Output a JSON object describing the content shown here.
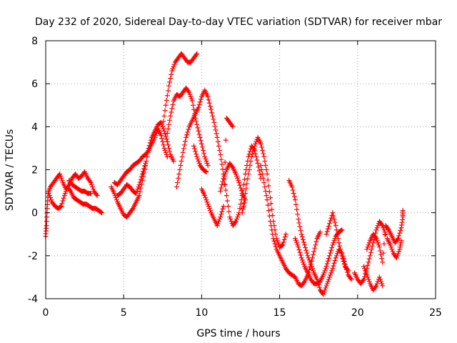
{
  "chart_data": {
    "type": "scatter",
    "title": "Day 232 of 2020, Sidereal Day-to-day VTEC variation (SDTVAR) for receiver mbar",
    "xlabel": "GPS time / hours",
    "ylabel": "SDTVAR / TECUs",
    "xlim": [
      0,
      25
    ],
    "ylim": [
      -4,
      8
    ],
    "xticks": [
      0,
      5,
      10,
      15,
      20,
      25
    ],
    "yticks": [
      -4,
      -2,
      0,
      2,
      4,
      6,
      8
    ],
    "grid": true,
    "marker": "+",
    "series": [
      {
        "name": "SDTVAR",
        "color": "#ff0000",
        "points": [
          [
            0.0,
            -1.1
          ],
          [
            0.05,
            -0.6
          ],
          [
            0.1,
            0.2
          ],
          [
            0.15,
            0.9
          ],
          [
            0.3,
            1.2
          ],
          [
            0.5,
            1.4
          ],
          [
            0.7,
            1.6
          ],
          [
            0.9,
            1.8
          ],
          [
            1.1,
            1.4
          ],
          [
            1.3,
            1.1
          ],
          [
            1.5,
            1.3
          ],
          [
            1.7,
            1.6
          ],
          [
            1.9,
            1.8
          ],
          [
            2.1,
            1.6
          ],
          [
            2.3,
            1.7
          ],
          [
            2.5,
            1.9
          ],
          [
            2.7,
            1.6
          ],
          [
            2.9,
            1.4
          ],
          [
            3.1,
            1.0
          ],
          [
            3.3,
            0.8
          ],
          [
            0.2,
            0.9
          ],
          [
            0.4,
            0.5
          ],
          [
            0.6,
            0.3
          ],
          [
            0.8,
            0.2
          ],
          [
            1.0,
            0.3
          ],
          [
            1.2,
            0.8
          ],
          [
            1.4,
            1.2
          ],
          [
            1.6,
            1.0
          ],
          [
            1.8,
            0.7
          ],
          [
            2.0,
            0.6
          ],
          [
            2.2,
            0.5
          ],
          [
            2.4,
            0.4
          ],
          [
            2.6,
            0.4
          ],
          [
            2.8,
            0.3
          ],
          [
            3.0,
            0.2
          ],
          [
            3.2,
            0.2
          ],
          [
            3.4,
            0.1
          ],
          [
            3.6,
            0.0
          ],
          [
            1.5,
            1.5
          ],
          [
            1.7,
            1.3
          ],
          [
            1.9,
            1.2
          ],
          [
            2.1,
            1.1
          ],
          [
            2.3,
            1.0
          ],
          [
            2.5,
            1.0
          ],
          [
            2.7,
            0.9
          ],
          [
            2.9,
            0.9
          ],
          [
            4.2,
            1.2
          ],
          [
            4.4,
            0.9
          ],
          [
            4.6,
            0.5
          ],
          [
            4.8,
            0.2
          ],
          [
            5.0,
            -0.1
          ],
          [
            5.2,
            -0.2
          ],
          [
            5.4,
            0.0
          ],
          [
            5.6,
            0.2
          ],
          [
            5.8,
            0.5
          ],
          [
            6.0,
            0.8
          ],
          [
            6.2,
            1.5
          ],
          [
            6.4,
            2.2
          ],
          [
            6.6,
            3.0
          ],
          [
            6.8,
            3.5
          ],
          [
            7.0,
            3.8
          ],
          [
            7.2,
            4.1
          ],
          [
            7.4,
            4.2
          ],
          [
            7.6,
            3.8
          ],
          [
            7.8,
            3.3
          ],
          [
            8.0,
            2.7
          ],
          [
            8.2,
            2.4
          ],
          [
            4.4,
            1.4
          ],
          [
            4.6,
            1.3
          ],
          [
            4.8,
            1.5
          ],
          [
            5.0,
            1.7
          ],
          [
            5.2,
            1.9
          ],
          [
            5.4,
            2.0
          ],
          [
            5.6,
            2.2
          ],
          [
            5.8,
            2.3
          ],
          [
            6.0,
            2.4
          ],
          [
            6.2,
            2.6
          ],
          [
            6.4,
            2.7
          ],
          [
            6.6,
            2.9
          ],
          [
            6.8,
            3.2
          ],
          [
            7.0,
            3.5
          ],
          [
            7.2,
            3.9
          ],
          [
            7.4,
            3.6
          ],
          [
            7.6,
            3.0
          ],
          [
            7.8,
            2.6
          ],
          [
            4.6,
            0.8
          ],
          [
            4.8,
            0.9
          ],
          [
            5.0,
            1.1
          ],
          [
            5.2,
            1.3
          ],
          [
            5.4,
            1.2
          ],
          [
            5.6,
            1.0
          ],
          [
            5.8,
            0.9
          ],
          [
            6.0,
            1.3
          ],
          [
            6.2,
            1.8
          ],
          [
            6.4,
            2.3
          ],
          [
            7.5,
            4.0
          ],
          [
            7.7,
            5.0
          ],
          [
            7.9,
            5.9
          ],
          [
            8.1,
            6.6
          ],
          [
            8.3,
            7.0
          ],
          [
            8.5,
            7.2
          ],
          [
            8.7,
            7.4
          ],
          [
            8.9,
            7.2
          ],
          [
            9.1,
            7.0
          ],
          [
            9.3,
            7.0
          ],
          [
            9.5,
            7.2
          ],
          [
            9.7,
            7.4
          ],
          [
            7.8,
            3.7
          ],
          [
            8.0,
            4.5
          ],
          [
            8.2,
            5.2
          ],
          [
            8.4,
            5.5
          ],
          [
            8.6,
            5.4
          ],
          [
            8.8,
            5.6
          ],
          [
            9.0,
            5.8
          ],
          [
            9.2,
            5.6
          ],
          [
            9.4,
            5.2
          ],
          [
            9.6,
            4.4
          ],
          [
            9.8,
            3.8
          ],
          [
            10.0,
            3.2
          ],
          [
            10.2,
            2.6
          ],
          [
            10.4,
            2.2
          ],
          [
            8.4,
            1.2
          ],
          [
            8.6,
            2.0
          ],
          [
            8.8,
            2.8
          ],
          [
            9.0,
            3.5
          ],
          [
            9.2,
            4.0
          ],
          [
            9.4,
            4.3
          ],
          [
            9.6,
            4.6
          ],
          [
            9.8,
            4.9
          ],
          [
            10.0,
            5.4
          ],
          [
            10.2,
            5.7
          ],
          [
            10.4,
            5.4
          ],
          [
            10.6,
            4.8
          ],
          [
            10.8,
            4.2
          ],
          [
            11.0,
            3.5
          ],
          [
            11.2,
            2.7
          ],
          [
            11.4,
            1.8
          ],
          [
            11.6,
            0.8
          ],
          [
            11.8,
            -0.2
          ],
          [
            12.0,
            -0.6
          ],
          [
            12.2,
            -0.4
          ],
          [
            12.4,
            0.0
          ],
          [
            12.6,
            0.8
          ],
          [
            12.8,
            1.8
          ],
          [
            13.0,
            2.6
          ],
          [
            13.2,
            3.1
          ],
          [
            13.4,
            2.9
          ],
          [
            13.6,
            2.3
          ],
          [
            13.8,
            1.6
          ],
          [
            9.5,
            3.1
          ],
          [
            9.7,
            2.6
          ],
          [
            9.9,
            2.2
          ],
          [
            10.1,
            2.0
          ],
          [
            10.3,
            1.9
          ],
          [
            10.0,
            1.1
          ],
          [
            10.2,
            0.8
          ],
          [
            10.4,
            0.4
          ],
          [
            10.6,
            0.0
          ],
          [
            10.8,
            -0.3
          ],
          [
            11.0,
            -0.6
          ],
          [
            11.2,
            -0.2
          ],
          [
            11.4,
            0.3
          ],
          [
            11.6,
            4.4
          ],
          [
            11.8,
            4.2
          ],
          [
            12.0,
            4.0
          ],
          [
            11.2,
            1.0
          ],
          [
            11.4,
            1.6
          ],
          [
            11.6,
            2.0
          ],
          [
            11.8,
            2.3
          ],
          [
            12.0,
            2.1
          ],
          [
            12.2,
            1.8
          ],
          [
            12.4,
            1.4
          ],
          [
            12.6,
            0.9
          ],
          [
            12.8,
            0.6
          ],
          [
            12.6,
            0.0
          ],
          [
            12.8,
            0.9
          ],
          [
            13.0,
            1.8
          ],
          [
            13.2,
            2.6
          ],
          [
            13.4,
            3.1
          ],
          [
            13.6,
            3.5
          ],
          [
            13.8,
            3.2
          ],
          [
            14.0,
            2.6
          ],
          [
            14.2,
            1.8
          ],
          [
            14.4,
            0.7
          ],
          [
            14.6,
            -0.4
          ],
          [
            14.8,
            -1.2
          ],
          [
            15.0,
            -1.6
          ],
          [
            15.2,
            -1.5
          ],
          [
            15.4,
            -1.0
          ],
          [
            13.8,
            2.2
          ],
          [
            14.0,
            1.4
          ],
          [
            14.2,
            0.6
          ],
          [
            14.4,
            -0.4
          ],
          [
            14.6,
            -1.2
          ],
          [
            14.8,
            -1.7
          ],
          [
            15.0,
            -2.0
          ],
          [
            15.2,
            -2.3
          ],
          [
            15.4,
            -2.6
          ],
          [
            15.6,
            -2.8
          ],
          [
            15.8,
            -2.9
          ],
          [
            16.0,
            -3.0
          ],
          [
            16.2,
            -3.3
          ],
          [
            16.4,
            -3.4
          ],
          [
            16.6,
            -3.2
          ],
          [
            16.8,
            -2.9
          ],
          [
            17.0,
            -2.4
          ],
          [
            17.2,
            -1.8
          ],
          [
            17.4,
            -1.2
          ],
          [
            17.6,
            -0.9
          ],
          [
            15.6,
            1.5
          ],
          [
            15.8,
            1.2
          ],
          [
            16.0,
            0.6
          ],
          [
            16.2,
            -0.3
          ],
          [
            16.4,
            -1.0
          ],
          [
            16.6,
            -1.5
          ],
          [
            16.8,
            -2.0
          ],
          [
            17.0,
            -2.4
          ],
          [
            17.2,
            -2.8
          ],
          [
            17.4,
            -3.1
          ],
          [
            17.6,
            -3.6
          ],
          [
            17.8,
            -3.8
          ],
          [
            18.0,
            -3.4
          ],
          [
            18.2,
            -3.0
          ],
          [
            18.4,
            -2.6
          ],
          [
            18.6,
            -2.1
          ],
          [
            18.8,
            -1.7
          ],
          [
            19.0,
            -1.9
          ],
          [
            19.2,
            -2.4
          ],
          [
            19.4,
            -2.9
          ],
          [
            19.6,
            -3.1
          ],
          [
            16.0,
            -1.2
          ],
          [
            16.2,
            -1.6
          ],
          [
            16.4,
            -2.1
          ],
          [
            16.6,
            -2.5
          ],
          [
            16.8,
            -2.8
          ],
          [
            17.0,
            -3.1
          ],
          [
            17.2,
            -3.3
          ],
          [
            17.4,
            -3.3
          ],
          [
            17.6,
            -3.2
          ],
          [
            17.8,
            -2.9
          ],
          [
            18.0,
            -2.5
          ],
          [
            18.2,
            -2.0
          ],
          [
            18.4,
            -1.5
          ],
          [
            18.6,
            -1.1
          ],
          [
            18.8,
            -0.9
          ],
          [
            19.0,
            -0.8
          ],
          [
            18.0,
            -1.0
          ],
          [
            18.2,
            -0.5
          ],
          [
            18.4,
            0.0
          ],
          [
            18.6,
            -0.6
          ],
          [
            18.8,
            -1.4
          ],
          [
            19.0,
            -2.0
          ],
          [
            19.2,
            -2.5
          ],
          [
            19.4,
            -2.7
          ],
          [
            19.8,
            -2.8
          ],
          [
            20.0,
            -3.1
          ],
          [
            20.2,
            -3.3
          ],
          [
            20.4,
            -3.1
          ],
          [
            20.6,
            -2.6
          ],
          [
            20.8,
            -2.0
          ],
          [
            21.0,
            -1.4
          ],
          [
            21.2,
            -0.8
          ],
          [
            21.4,
            -0.4
          ],
          [
            21.6,
            -0.6
          ],
          [
            21.8,
            -1.0
          ],
          [
            20.4,
            -2.5
          ],
          [
            20.6,
            -2.9
          ],
          [
            20.8,
            -3.3
          ],
          [
            21.0,
            -3.6
          ],
          [
            21.2,
            -3.4
          ],
          [
            21.4,
            -3.0
          ],
          [
            21.6,
            -3.4
          ],
          [
            20.6,
            -1.7
          ],
          [
            20.8,
            -1.3
          ],
          [
            21.0,
            -1.0
          ],
          [
            21.2,
            -1.2
          ],
          [
            21.4,
            -1.6
          ],
          [
            21.6,
            -2.3
          ],
          [
            21.8,
            -0.6
          ],
          [
            22.0,
            -0.8
          ],
          [
            22.2,
            -1.1
          ],
          [
            22.4,
            -1.4
          ],
          [
            22.6,
            -1.2
          ],
          [
            22.8,
            -0.7
          ],
          [
            22.9,
            -0.2
          ],
          [
            22.9,
            0.1
          ],
          [
            21.9,
            -1.2
          ],
          [
            22.1,
            -1.5
          ],
          [
            22.3,
            -1.9
          ],
          [
            22.5,
            -2.1
          ],
          [
            22.7,
            -1.7
          ],
          [
            22.8,
            -1.3
          ]
        ]
      }
    ]
  }
}
